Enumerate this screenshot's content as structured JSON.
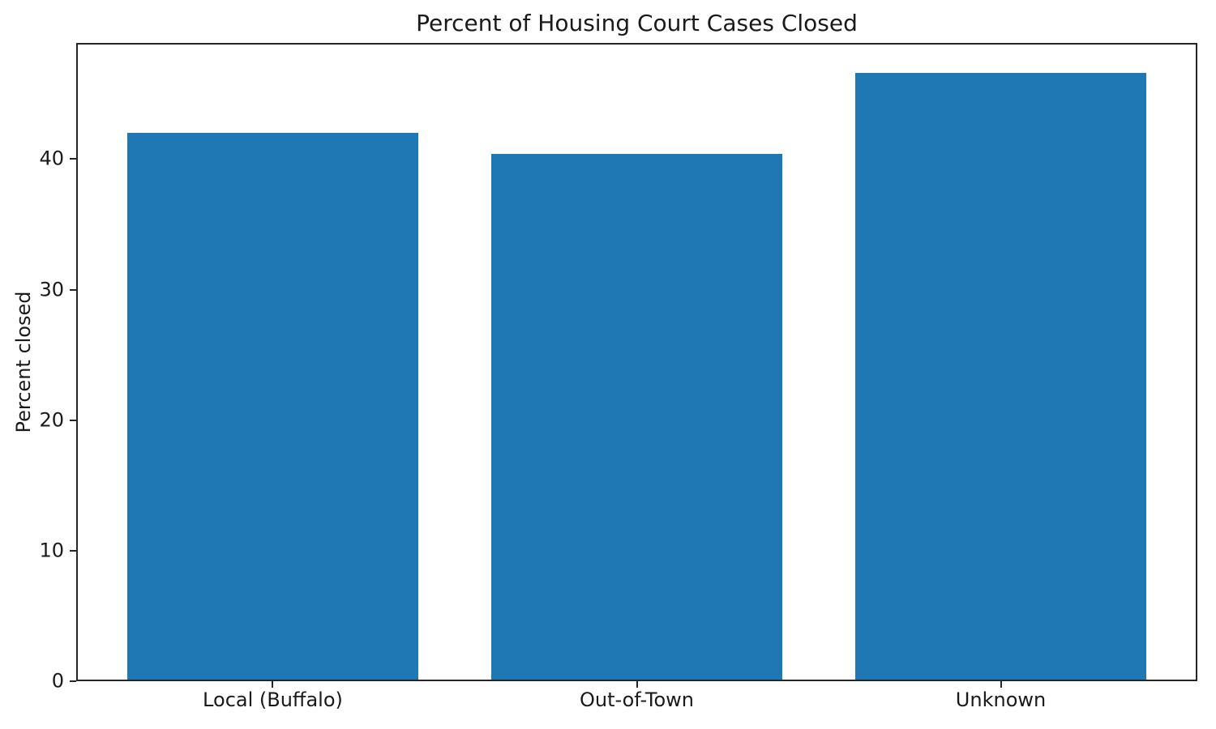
{
  "chart_data": {
    "type": "bar",
    "title": "Percent of Housing Court Cases Closed",
    "xlabel": "",
    "ylabel": "Percent closed",
    "categories": [
      "Local (Buffalo)",
      "Out-of-Town",
      "Unknown"
    ],
    "values": [
      42.0,
      40.4,
      46.6
    ],
    "yticks": [
      0,
      10,
      20,
      30,
      40
    ],
    "ylim": [
      0,
      48.9
    ],
    "bar_width_fraction": 0.8,
    "grid": false,
    "legend": false,
    "colors": {
      "bar": "#1f77b4",
      "text": "#1a1a1a",
      "spine": "#262626",
      "background": "#ffffff"
    }
  }
}
